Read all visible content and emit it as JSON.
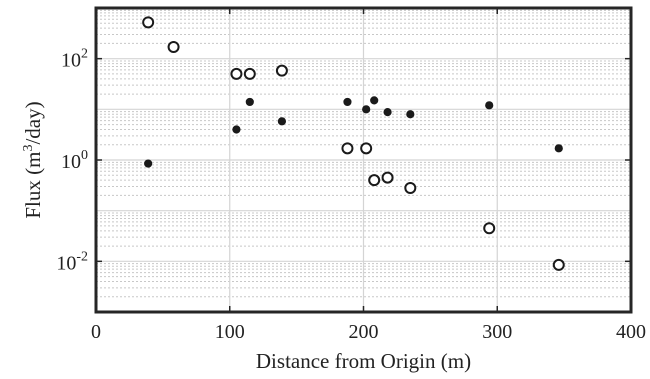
{
  "chart_data": {
    "type": "scatter",
    "xlabel": "Distance from Origin (m)",
    "ylabel": {
      "pre": "Flux (m",
      "sup": "3",
      "post": "/day)"
    },
    "xlim": [
      0,
      400
    ],
    "ylim": [
      0.001,
      1000
    ],
    "y_scale": "log",
    "grid": true,
    "x_ticks": [
      {
        "value": 0,
        "label": "0"
      },
      {
        "value": 100,
        "label": "100"
      },
      {
        "value": 200,
        "label": "200"
      },
      {
        "value": 300,
        "label": "300"
      },
      {
        "value": 400,
        "label": "400"
      }
    ],
    "y_ticks": [
      {
        "value": 0.01,
        "base": "10",
        "exp": "-2"
      },
      {
        "value": 1,
        "base": "10",
        "exp": "0"
      },
      {
        "value": 100,
        "base": "10",
        "exp": "2"
      }
    ],
    "series": [
      {
        "marker": "open-circle",
        "color": "#1a1a1a",
        "points": [
          {
            "x": 39,
            "y": 520
          },
          {
            "x": 58,
            "y": 170
          },
          {
            "x": 105,
            "y": 50
          },
          {
            "x": 115,
            "y": 50
          },
          {
            "x": 139,
            "y": 58
          },
          {
            "x": 188,
            "y": 1.7
          },
          {
            "x": 202,
            "y": 1.7
          },
          {
            "x": 208,
            "y": 0.4
          },
          {
            "x": 218,
            "y": 0.45
          },
          {
            "x": 235,
            "y": 0.28
          },
          {
            "x": 294,
            "y": 0.045
          },
          {
            "x": 346,
            "y": 0.0085
          }
        ]
      },
      {
        "marker": "filled-circle",
        "color": "#1a1a1a",
        "points": [
          {
            "x": 39,
            "y": 0.85
          },
          {
            "x": 105,
            "y": 4.0
          },
          {
            "x": 115,
            "y": 14
          },
          {
            "x": 139,
            "y": 5.8
          },
          {
            "x": 188,
            "y": 14
          },
          {
            "x": 202,
            "y": 10
          },
          {
            "x": 208,
            "y": 15
          },
          {
            "x": 218,
            "y": 8.8
          },
          {
            "x": 235,
            "y": 8.0
          },
          {
            "x": 294,
            "y": 12
          },
          {
            "x": 346,
            "y": 1.7
          }
        ]
      }
    ]
  }
}
